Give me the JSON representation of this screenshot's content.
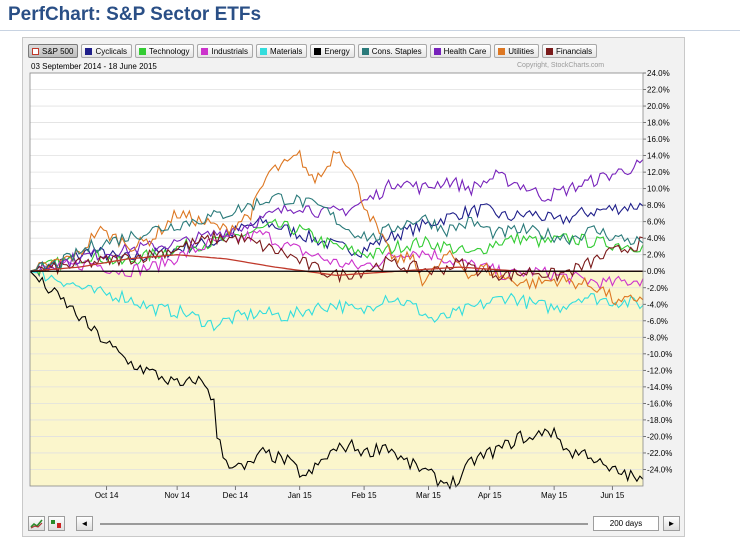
{
  "page": {
    "title": "PerfChart: S&P Sector ETFs"
  },
  "chart_header": {
    "date_range": "03 September 2014 - 18 June 2015",
    "copyright": "Copyright, StockCharts.com"
  },
  "controls": {
    "period_label": "200 days",
    "left_arrow": "◄",
    "right_arrow": "►"
  },
  "colors": {
    "plot_above": "#ffffff",
    "plot_below": "#fbf6cc",
    "zero_line": "#000000",
    "grid": "#e0e0e0"
  },
  "chart_data": {
    "type": "line",
    "title": "",
    "xlabel": "",
    "ylabel": "",
    "ylim": [
      -26,
      24
    ],
    "yticks": [
      24,
      22,
      20,
      18,
      16,
      14,
      12,
      10,
      8,
      6,
      4,
      2,
      0,
      -2,
      -4,
      -6,
      -8,
      -10,
      -12,
      -14,
      -16,
      -18,
      -20,
      -22,
      -24
    ],
    "ytick_labels": [
      "24.0%",
      "22.0%",
      "20.0%",
      "18.0%",
      "16.0%",
      "14.0%",
      "12.0%",
      "10.0%",
      "8.0%",
      "6.0%",
      "4.0%",
      "2.0%",
      "0.0%",
      "-2.0%",
      "-4.0%",
      "-6.0%",
      "-8.0%",
      "-10.0%",
      "-12.0%",
      "-14.0%",
      "-16.0%",
      "-18.0%",
      "-20.0%",
      "-22.0%",
      "-24.0%"
    ],
    "x_tick_labels": [
      "Oct 14",
      "Nov 14",
      "Dec 14",
      "Jan 15",
      "Feb 15",
      "Mar 15",
      "Apr 15",
      "May 15",
      "Jun 15"
    ],
    "x_tick_positions": [
      0.125,
      0.24,
      0.335,
      0.44,
      0.545,
      0.65,
      0.75,
      0.855,
      0.95
    ],
    "grid": true,
    "legend_position": "top",
    "series": [
      {
        "name": "S&P 500",
        "color": "#c0392b",
        "keys": [
          [
            0,
            0
          ],
          [
            0.08,
            0.5
          ],
          [
            0.16,
            1.5
          ],
          [
            0.24,
            2.0
          ],
          [
            0.32,
            1.5
          ],
          [
            0.4,
            0.5
          ],
          [
            0.5,
            -0.5
          ],
          [
            0.6,
            0
          ],
          [
            0.7,
            0.5
          ],
          [
            0.8,
            0
          ],
          [
            0.9,
            0
          ],
          [
            1,
            0
          ]
        ]
      },
      {
        "name": "Cyclicals",
        "color": "#1f1f8a",
        "keys": [
          [
            0,
            0
          ],
          [
            0.05,
            1
          ],
          [
            0.1,
            2.5
          ],
          [
            0.15,
            1.5
          ],
          [
            0.2,
            2
          ],
          [
            0.26,
            3
          ],
          [
            0.3,
            3.5
          ],
          [
            0.34,
            5
          ],
          [
            0.38,
            6
          ],
          [
            0.42,
            5
          ],
          [
            0.46,
            4
          ],
          [
            0.5,
            3
          ],
          [
            0.54,
            2.5
          ],
          [
            0.58,
            4
          ],
          [
            0.62,
            5
          ],
          [
            0.66,
            6
          ],
          [
            0.7,
            7
          ],
          [
            0.74,
            7.5
          ],
          [
            0.78,
            6.5
          ],
          [
            0.82,
            7
          ],
          [
            0.86,
            6
          ],
          [
            0.9,
            7
          ],
          [
            0.94,
            7.5
          ],
          [
            1,
            8
          ]
        ]
      },
      {
        "name": "Technology",
        "color": "#33cc33",
        "keys": [
          [
            0,
            0
          ],
          [
            0.05,
            1
          ],
          [
            0.1,
            2
          ],
          [
            0.15,
            1
          ],
          [
            0.2,
            2
          ],
          [
            0.25,
            3
          ],
          [
            0.3,
            3.5
          ],
          [
            0.35,
            4.5
          ],
          [
            0.4,
            5.5
          ],
          [
            0.44,
            5
          ],
          [
            0.48,
            3.5
          ],
          [
            0.52,
            2.5
          ],
          [
            0.56,
            2
          ],
          [
            0.6,
            3
          ],
          [
            0.64,
            3.5
          ],
          [
            0.68,
            3
          ],
          [
            0.72,
            2
          ],
          [
            0.76,
            3.5
          ],
          [
            0.8,
            4
          ],
          [
            0.84,
            3.5
          ],
          [
            0.88,
            4
          ],
          [
            0.92,
            3.5
          ],
          [
            1,
            3
          ]
        ]
      },
      {
        "name": "Industrials",
        "color": "#cc33cc",
        "keys": [
          [
            0,
            0
          ],
          [
            0.05,
            0.5
          ],
          [
            0.1,
            1
          ],
          [
            0.15,
            0
          ],
          [
            0.2,
            0.5
          ],
          [
            0.25,
            2
          ],
          [
            0.3,
            3.5
          ],
          [
            0.34,
            4
          ],
          [
            0.38,
            4.5
          ],
          [
            0.42,
            3
          ],
          [
            0.46,
            2
          ],
          [
            0.5,
            1
          ],
          [
            0.54,
            0.5
          ],
          [
            0.58,
            1.5
          ],
          [
            0.62,
            2.5
          ],
          [
            0.66,
            2
          ],
          [
            0.7,
            1
          ],
          [
            0.74,
            0.5
          ],
          [
            0.78,
            -0.5
          ],
          [
            0.82,
            0
          ],
          [
            0.86,
            -0.5
          ],
          [
            0.9,
            -1
          ],
          [
            0.94,
            -1.5
          ],
          [
            1,
            -1
          ]
        ]
      },
      {
        "name": "Materials",
        "color": "#33dddd",
        "keys": [
          [
            0,
            0
          ],
          [
            0.05,
            -1
          ],
          [
            0.1,
            -2.5
          ],
          [
            0.15,
            -3
          ],
          [
            0.2,
            -4.5
          ],
          [
            0.25,
            -5
          ],
          [
            0.3,
            -6.5
          ],
          [
            0.34,
            -5.5
          ],
          [
            0.38,
            -5
          ],
          [
            0.42,
            -5.5
          ],
          [
            0.46,
            -4.5
          ],
          [
            0.5,
            -4
          ],
          [
            0.54,
            -5
          ],
          [
            0.58,
            -3
          ],
          [
            0.62,
            -4
          ],
          [
            0.66,
            -6
          ],
          [
            0.7,
            -5
          ],
          [
            0.74,
            -4
          ],
          [
            0.78,
            -3
          ],
          [
            0.82,
            -4
          ],
          [
            0.86,
            -4.5
          ],
          [
            0.9,
            -3
          ],
          [
            0.94,
            -3.5
          ],
          [
            1,
            -4
          ]
        ]
      },
      {
        "name": "Energy",
        "color": "#000000",
        "keys": [
          [
            0,
            0
          ],
          [
            0.02,
            -1.5
          ],
          [
            0.06,
            -4
          ],
          [
            0.1,
            -7
          ],
          [
            0.13,
            -9
          ],
          [
            0.16,
            -11
          ],
          [
            0.19,
            -12
          ],
          [
            0.22,
            -13
          ],
          [
            0.25,
            -14
          ],
          [
            0.27,
            -13
          ],
          [
            0.29,
            -14
          ],
          [
            0.3,
            -16
          ],
          [
            0.305,
            -20
          ],
          [
            0.32,
            -23
          ],
          [
            0.35,
            -24
          ],
          [
            0.38,
            -22
          ],
          [
            0.42,
            -23
          ],
          [
            0.45,
            -25
          ],
          [
            0.49,
            -22
          ],
          [
            0.52,
            -21
          ],
          [
            0.55,
            -22
          ],
          [
            0.58,
            -21
          ],
          [
            0.61,
            -23
          ],
          [
            0.64,
            -24
          ],
          [
            0.67,
            -25.5
          ],
          [
            0.7,
            -25.5
          ],
          [
            0.72,
            -23
          ],
          [
            0.75,
            -22
          ],
          [
            0.78,
            -21
          ],
          [
            0.8,
            -20
          ],
          [
            0.82,
            -20.5
          ],
          [
            0.84,
            -19
          ],
          [
            0.86,
            -20
          ],
          [
            0.88,
            -22
          ],
          [
            0.91,
            -22
          ],
          [
            0.94,
            -24
          ],
          [
            0.97,
            -24.5
          ],
          [
            1,
            -25.5
          ]
        ]
      },
      {
        "name": "Cons. Staples",
        "color": "#2a7a7a",
        "keys": [
          [
            0,
            0
          ],
          [
            0.05,
            1
          ],
          [
            0.1,
            3
          ],
          [
            0.15,
            4
          ],
          [
            0.2,
            5
          ],
          [
            0.26,
            6
          ],
          [
            0.32,
            7
          ],
          [
            0.36,
            8
          ],
          [
            0.4,
            9
          ],
          [
            0.44,
            8.5
          ],
          [
            0.48,
            7.5
          ],
          [
            0.52,
            5
          ],
          [
            0.56,
            4
          ],
          [
            0.6,
            5.5
          ],
          [
            0.64,
            6.5
          ],
          [
            0.68,
            5
          ],
          [
            0.72,
            6
          ],
          [
            0.76,
            4.5
          ],
          [
            0.8,
            5
          ],
          [
            0.84,
            4.5
          ],
          [
            0.88,
            4
          ],
          [
            0.92,
            5
          ],
          [
            0.96,
            4
          ],
          [
            1,
            3.5
          ]
        ]
      },
      {
        "name": "Health Care",
        "color": "#7722bb",
        "keys": [
          [
            0,
            0
          ],
          [
            0.05,
            1
          ],
          [
            0.1,
            2
          ],
          [
            0.15,
            2.5
          ],
          [
            0.2,
            3
          ],
          [
            0.25,
            3.5
          ],
          [
            0.3,
            4.5
          ],
          [
            0.35,
            5.5
          ],
          [
            0.4,
            7
          ],
          [
            0.44,
            8
          ],
          [
            0.48,
            7
          ],
          [
            0.52,
            7.5
          ],
          [
            0.56,
            9
          ],
          [
            0.6,
            11
          ],
          [
            0.64,
            10
          ],
          [
            0.68,
            11
          ],
          [
            0.72,
            10
          ],
          [
            0.76,
            11.5
          ],
          [
            0.8,
            10.5
          ],
          [
            0.84,
            9
          ],
          [
            0.88,
            10
          ],
          [
            0.92,
            11
          ],
          [
            0.96,
            12
          ],
          [
            1,
            13
          ]
        ]
      },
      {
        "name": "Utilities",
        "color": "#dd7722",
        "keys": [
          [
            0,
            0
          ],
          [
            0.04,
            1
          ],
          [
            0.08,
            2
          ],
          [
            0.11,
            5
          ],
          [
            0.14,
            4
          ],
          [
            0.17,
            3
          ],
          [
            0.2,
            4
          ],
          [
            0.24,
            7
          ],
          [
            0.28,
            6
          ],
          [
            0.32,
            5
          ],
          [
            0.36,
            7
          ],
          [
            0.39,
            12
          ],
          [
            0.42,
            13
          ],
          [
            0.44,
            14
          ],
          [
            0.46,
            11
          ],
          [
            0.48,
            12
          ],
          [
            0.5,
            15
          ],
          [
            0.52,
            13
          ],
          [
            0.54,
            9
          ],
          [
            0.56,
            6
          ],
          [
            0.58,
            3
          ],
          [
            0.6,
            1
          ],
          [
            0.62,
            2
          ],
          [
            0.64,
            -1
          ],
          [
            0.66,
            0
          ],
          [
            0.68,
            2
          ],
          [
            0.7,
            1
          ],
          [
            0.72,
            -0.5
          ],
          [
            0.74,
            0.5
          ],
          [
            0.78,
            -1
          ],
          [
            0.82,
            -1.5
          ],
          [
            0.86,
            -1
          ],
          [
            0.9,
            -1.5
          ],
          [
            0.93,
            -2
          ],
          [
            0.96,
            -4
          ],
          [
            1,
            -3
          ]
        ]
      },
      {
        "name": "Financials",
        "color": "#7a1a1a",
        "keys": [
          [
            0,
            0
          ],
          [
            0.05,
            0.5
          ],
          [
            0.1,
            1
          ],
          [
            0.15,
            1.5
          ],
          [
            0.2,
            2
          ],
          [
            0.25,
            3
          ],
          [
            0.3,
            4
          ],
          [
            0.34,
            4
          ],
          [
            0.38,
            3
          ],
          [
            0.42,
            2
          ],
          [
            0.46,
            0.5
          ],
          [
            0.5,
            -0.5
          ],
          [
            0.54,
            0
          ],
          [
            0.58,
            1
          ],
          [
            0.62,
            0.5
          ],
          [
            0.66,
            0
          ],
          [
            0.7,
            1
          ],
          [
            0.74,
            0
          ],
          [
            0.78,
            -0.5
          ],
          [
            0.82,
            0
          ],
          [
            0.86,
            -0.5
          ],
          [
            0.9,
            0.5
          ],
          [
            0.94,
            2
          ],
          [
            1,
            3.5
          ]
        ]
      }
    ]
  }
}
